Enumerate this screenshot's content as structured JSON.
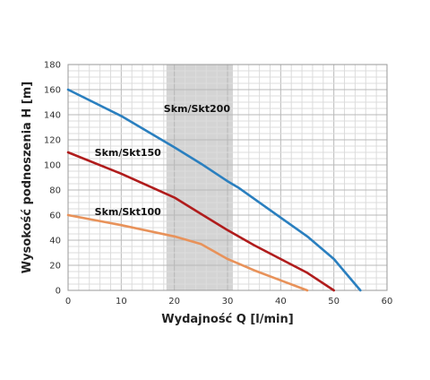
{
  "chart_data": {
    "type": "line",
    "title": "",
    "xlabel": "Wydajność Q [l/min]",
    "ylabel": "Wysokość podnoszenia H [m]",
    "xlim": [
      0,
      60
    ],
    "ylim": [
      0,
      180
    ],
    "x_ticks": [
      0,
      10,
      20,
      30,
      40,
      50,
      60
    ],
    "y_ticks": [
      0,
      20,
      40,
      60,
      80,
      100,
      120,
      140,
      160,
      180
    ],
    "grid": true,
    "highlight_band": {
      "x_from": 18.5,
      "x_to": 31
    },
    "series": [
      {
        "name": "Skm/Skt200",
        "color": "#2a7fbf",
        "points": [
          [
            0,
            160
          ],
          [
            10,
            139
          ],
          [
            20,
            114
          ],
          [
            25,
            101
          ],
          [
            30,
            87
          ],
          [
            32,
            82
          ],
          [
            40,
            58
          ],
          [
            45,
            43
          ],
          [
            50,
            25
          ],
          [
            52,
            15
          ],
          [
            55,
            0
          ]
        ]
      },
      {
        "name": "Skm/Skt150",
        "color": "#b01c1c",
        "points": [
          [
            0,
            110
          ],
          [
            10,
            93
          ],
          [
            20,
            74
          ],
          [
            25,
            61
          ],
          [
            30,
            48
          ],
          [
            35,
            36
          ],
          [
            40,
            25
          ],
          [
            45,
            14
          ],
          [
            50,
            0
          ]
        ]
      },
      {
        "name": "Skm/Skt100",
        "color": "#e8925a",
        "points": [
          [
            0,
            60
          ],
          [
            10,
            52
          ],
          [
            20,
            43
          ],
          [
            25,
            37
          ],
          [
            30,
            25
          ],
          [
            35,
            16
          ],
          [
            40,
            8
          ],
          [
            45,
            0
          ]
        ]
      }
    ],
    "series_labels_at": [
      {
        "text": "Skm/Skt200",
        "x": 18,
        "y": 142
      },
      {
        "text": "Skm/Skt150",
        "x": 5,
        "y": 107
      },
      {
        "text": "Skm/Skt100",
        "x": 5,
        "y": 60
      }
    ]
  }
}
